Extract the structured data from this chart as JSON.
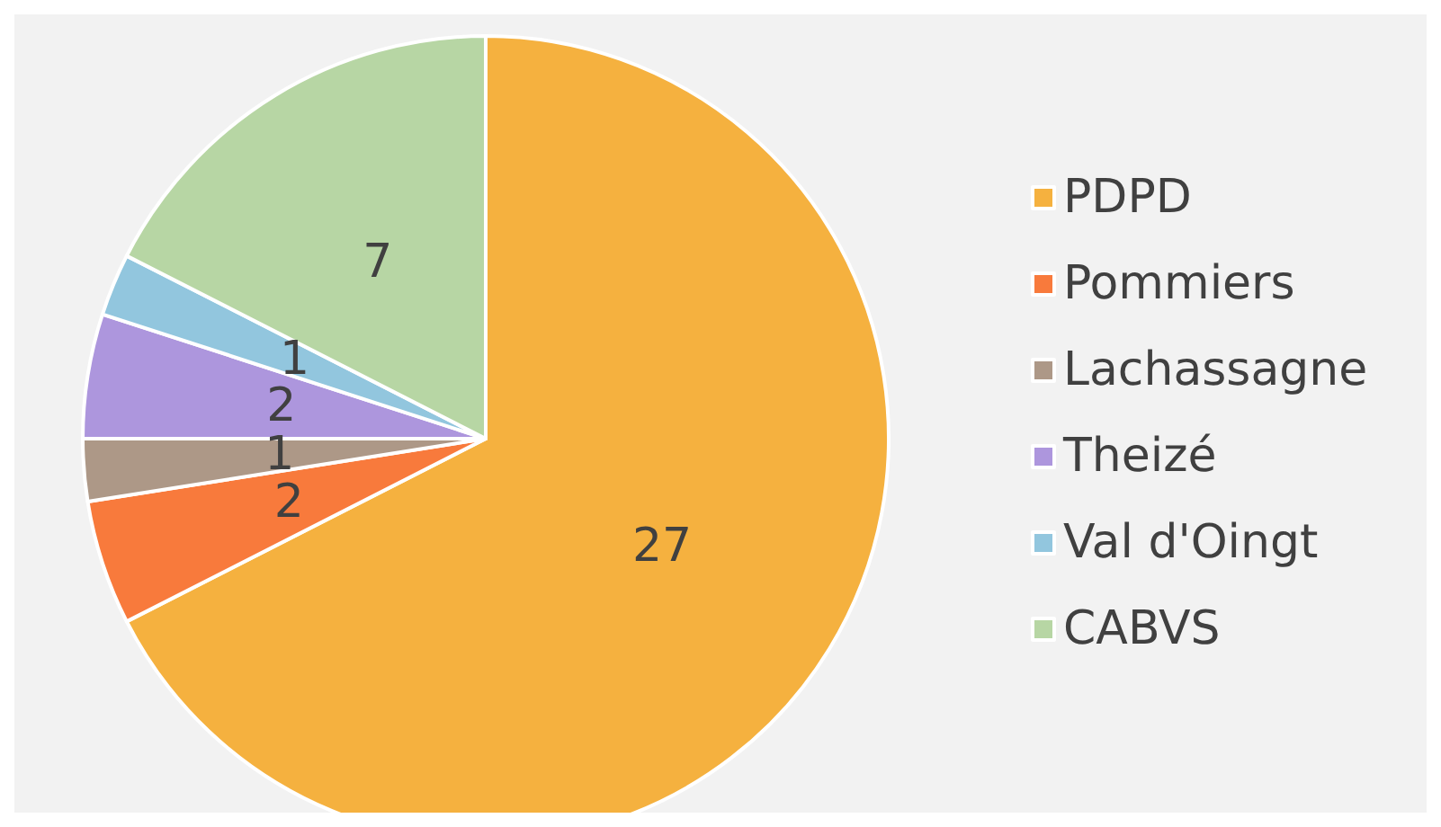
{
  "chart_data": {
    "type": "pie",
    "categories": [
      "PDPD",
      "Pommiers",
      "Lachassagne",
      "Theizé",
      "Val d'Oingt",
      "CABVS"
    ],
    "values": [
      27,
      2,
      1,
      2,
      1,
      7
    ],
    "colors": [
      "#f5b13f",
      "#f87a3c",
      "#ad9887",
      "#ad96dd",
      "#92c6de",
      "#b7d6a4"
    ],
    "data_labels": true,
    "legend": "right"
  }
}
